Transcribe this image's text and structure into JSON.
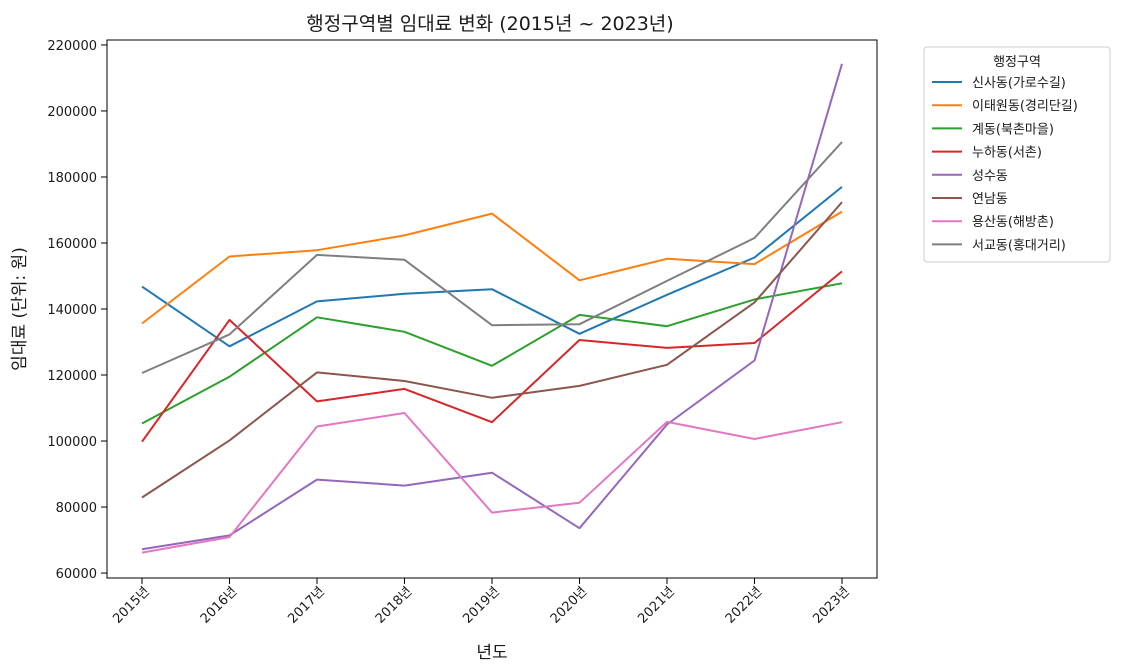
{
  "chart_data": {
    "type": "line",
    "title": "행정구역별 임대료 변화 (2015년 ~ 2023년)",
    "xlabel": "년도",
    "ylabel": "임대료 (단위: 원)",
    "categories": [
      "2015년",
      "2016년",
      "2017년",
      "2018년",
      "2019년",
      "2020년",
      "2021년",
      "2022년",
      "2023년"
    ],
    "ylim": [
      58500,
      221500
    ],
    "yticks": [
      60000,
      80000,
      100000,
      120000,
      140000,
      160000,
      180000,
      200000,
      220000
    ],
    "grid": false,
    "legend": {
      "title": "행정구역",
      "placement": "outside-upper-right"
    },
    "series": [
      {
        "name": "신사동(가로수길)",
        "color": "#1f77b4",
        "values": [
          146800,
          128700,
          142300,
          144600,
          146000,
          132500,
          144300,
          155600,
          177000
        ]
      },
      {
        "name": "이태원동(경리단길)",
        "color": "#ff7f0e",
        "values": [
          135600,
          155900,
          157800,
          162300,
          168900,
          148700,
          155200,
          153600,
          169500
        ]
      },
      {
        "name": "계동(북촌마을)",
        "color": "#2ca02c",
        "values": [
          105300,
          119500,
          137500,
          133100,
          122800,
          138200,
          134800,
          142900,
          147800
        ]
      },
      {
        "name": "누하동(서촌)",
        "color": "#d62728",
        "values": [
          99800,
          136700,
          112000,
          115800,
          105700,
          130600,
          128200,
          129700,
          151400
        ]
      },
      {
        "name": "성수동",
        "color": "#9467bd",
        "values": [
          67200,
          71400,
          88300,
          86500,
          90400,
          73600,
          105000,
          124400,
          214300
        ]
      },
      {
        "name": "연남동",
        "color": "#8c564b",
        "values": [
          82900,
          100200,
          120800,
          118200,
          113100,
          116700,
          123100,
          142000,
          172400
        ]
      },
      {
        "name": "용산동(해방촌)",
        "color": "#e377c2",
        "values": [
          66200,
          70900,
          104400,
          108500,
          78300,
          81300,
          105800,
          100600,
          105700
        ]
      },
      {
        "name": "서교동(홍대거리)",
        "color": "#7f7f7f",
        "values": [
          120600,
          132300,
          156400,
          154900,
          135100,
          135400,
          148500,
          161500,
          190600
        ]
      }
    ]
  }
}
